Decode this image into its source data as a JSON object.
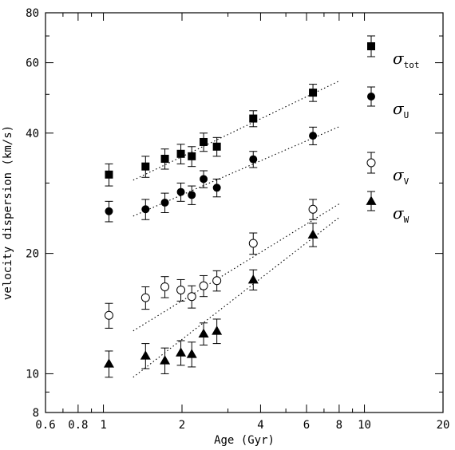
{
  "chart_data": {
    "type": "scatter",
    "xlabel": "Age (Gyr)",
    "ylabel": "velocity dispersion (km/s)",
    "xscale": "log",
    "yscale": "log",
    "xlim": [
      0.6,
      20
    ],
    "ylim": [
      8,
      80
    ],
    "x_ticks": [
      0.6,
      0.8,
      1,
      2,
      4,
      6,
      8,
      10,
      20
    ],
    "x_tick_labels": [
      "0.6",
      "0.8",
      "1",
      "2",
      "4",
      "6",
      "8",
      "10",
      "20"
    ],
    "y_ticks": [
      8,
      10,
      20,
      40,
      60,
      80
    ],
    "y_tick_labels": [
      "8",
      "10",
      "20",
      "40",
      "60",
      "80"
    ],
    "x_minor_ticks": [
      0.7,
      0.9,
      3,
      5,
      7,
      9
    ],
    "y_minor_ticks": [
      9,
      30,
      50,
      70
    ],
    "grid": false,
    "legend_position": "right",
    "series": [
      {
        "key": "tot",
        "symbol": "σ",
        "subscript": "tot",
        "marker": "filled-square",
        "x": [
          1.05,
          1.45,
          1.72,
          1.98,
          2.18,
          2.42,
          2.72,
          3.75,
          6.35
        ],
        "y": [
          31.5,
          33.0,
          34.5,
          35.5,
          35.0,
          38.0,
          37.0,
          43.5,
          50.5
        ],
        "err": [
          2.0,
          2.0,
          2.0,
          2.0,
          2.0,
          2.0,
          2.0,
          2.0,
          2.5
        ],
        "fit": {
          "x": [
            1.3,
            8.0
          ],
          "y": [
            30.5,
            54.0
          ]
        }
      },
      {
        "key": "U",
        "symbol": "σ",
        "subscript": "U",
        "marker": "filled-circle",
        "x": [
          1.05,
          1.45,
          1.72,
          1.98,
          2.18,
          2.42,
          2.72,
          3.75,
          6.35
        ],
        "y": [
          25.5,
          25.8,
          26.8,
          28.5,
          28.0,
          30.7,
          29.2,
          34.4,
          39.4
        ],
        "err": [
          1.5,
          1.5,
          1.5,
          1.5,
          1.5,
          1.5,
          1.5,
          1.6,
          2.0
        ],
        "fit": {
          "x": [
            1.3,
            8.0
          ],
          "y": [
            24.8,
            41.5
          ]
        }
      },
      {
        "key": "V",
        "symbol": "σ",
        "subscript": "V",
        "marker": "open-circle",
        "x": [
          1.05,
          1.45,
          1.72,
          1.98,
          2.18,
          2.42,
          2.72,
          3.75,
          6.35
        ],
        "y": [
          14.0,
          15.5,
          16.5,
          16.2,
          15.6,
          16.6,
          17.1,
          21.2,
          25.8
        ],
        "err": [
          1.0,
          1.0,
          1.0,
          1.0,
          1.0,
          1.0,
          1.0,
          1.3,
          1.5
        ],
        "fit": {
          "x": [
            1.3,
            8.0
          ],
          "y": [
            12.8,
            26.6
          ]
        }
      },
      {
        "key": "W",
        "symbol": "σ",
        "subscript": "W",
        "marker": "filled-triangle",
        "x": [
          1.05,
          1.45,
          1.72,
          1.98,
          2.18,
          2.42,
          2.72,
          3.75,
          6.35
        ],
        "y": [
          10.6,
          11.1,
          10.8,
          11.3,
          11.2,
          12.6,
          12.8,
          17.2,
          22.3
        ],
        "err": [
          0.8,
          0.8,
          0.8,
          0.8,
          0.8,
          0.8,
          0.9,
          1.0,
          1.5
        ],
        "fit": {
          "x": [
            1.3,
            8.0
          ],
          "y": [
            9.8,
            24.6
          ]
        }
      }
    ]
  }
}
